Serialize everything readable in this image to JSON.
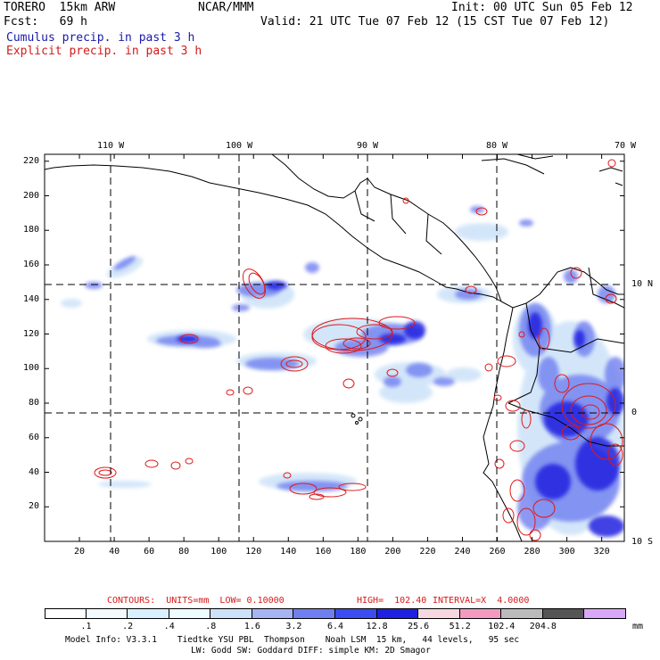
{
  "header": {
    "model": "TORERO  15km ARW",
    "center": "NCAR/MMM",
    "init": "Init: 00 UTC Sun 05 Feb 12",
    "fcst": "Fcst:   69 h",
    "valid": "Valid: 21 UTC Tue 07 Feb 12 (15 CST Tue 07 Feb 12)",
    "cumulus": "Cumulus precip. in past 3 h",
    "explicit": "Explicit precip. in past 3 h"
  },
  "axes": {
    "top_lon_labels": [
      "110 W",
      "100 W",
      "90 W",
      "80 W",
      "70 W"
    ],
    "right_lat_labels": [
      "10 N",
      "0",
      "10 S"
    ],
    "x_ticks": [
      "20",
      "40",
      "60",
      "80",
      "100",
      "120",
      "140",
      "160",
      "180",
      "200",
      "220",
      "240",
      "260",
      "280",
      "300",
      "320"
    ],
    "y_ticks": [
      "220",
      "200",
      "180",
      "160",
      "140",
      "120",
      "100",
      "80",
      "60",
      "40",
      "20"
    ]
  },
  "contour_info": {
    "units": "CONTOURS:  UNITS=mm  LOW= 0.10000",
    "high": "HIGH=  102.40",
    "interval": "INTERVAL=X  4.0000"
  },
  "legend": {
    "labels": [
      ".1",
      ".2",
      ".4",
      ".8",
      "1.6",
      "3.2",
      "6.4",
      "12.8",
      "25.6",
      "51.2",
      "102.4",
      "204.8"
    ],
    "unit": "mm",
    "colors": [
      "#ffffff",
      "#f2f9ff",
      "#d8f0ff",
      "#eefcff",
      "#cce2f8",
      "#a6b4f4",
      "#6f7ff0",
      "#3b4cf0",
      "#2020e0",
      "#f8d8e0",
      "#f49ac0",
      "#bbbbbb",
      "#555555",
      "#d8a8f8"
    ]
  },
  "footer": {
    "line1": "Model Info: V3.3.1    Tiedtke YSU PBL  Thompson    Noah LSM  15 km,   44 levels,   95 sec",
    "line2": "LW: Godd SW: Goddard DIFF: simple KM: 2D Smagor"
  },
  "map": {
    "x_range": [
      0,
      333
    ],
    "y_range": [
      0,
      224
    ],
    "lon_grid": [
      "110 W",
      "100 W",
      "90 W",
      "80 W"
    ],
    "lat_grid": [
      "10 N",
      "0"
    ]
  }
}
